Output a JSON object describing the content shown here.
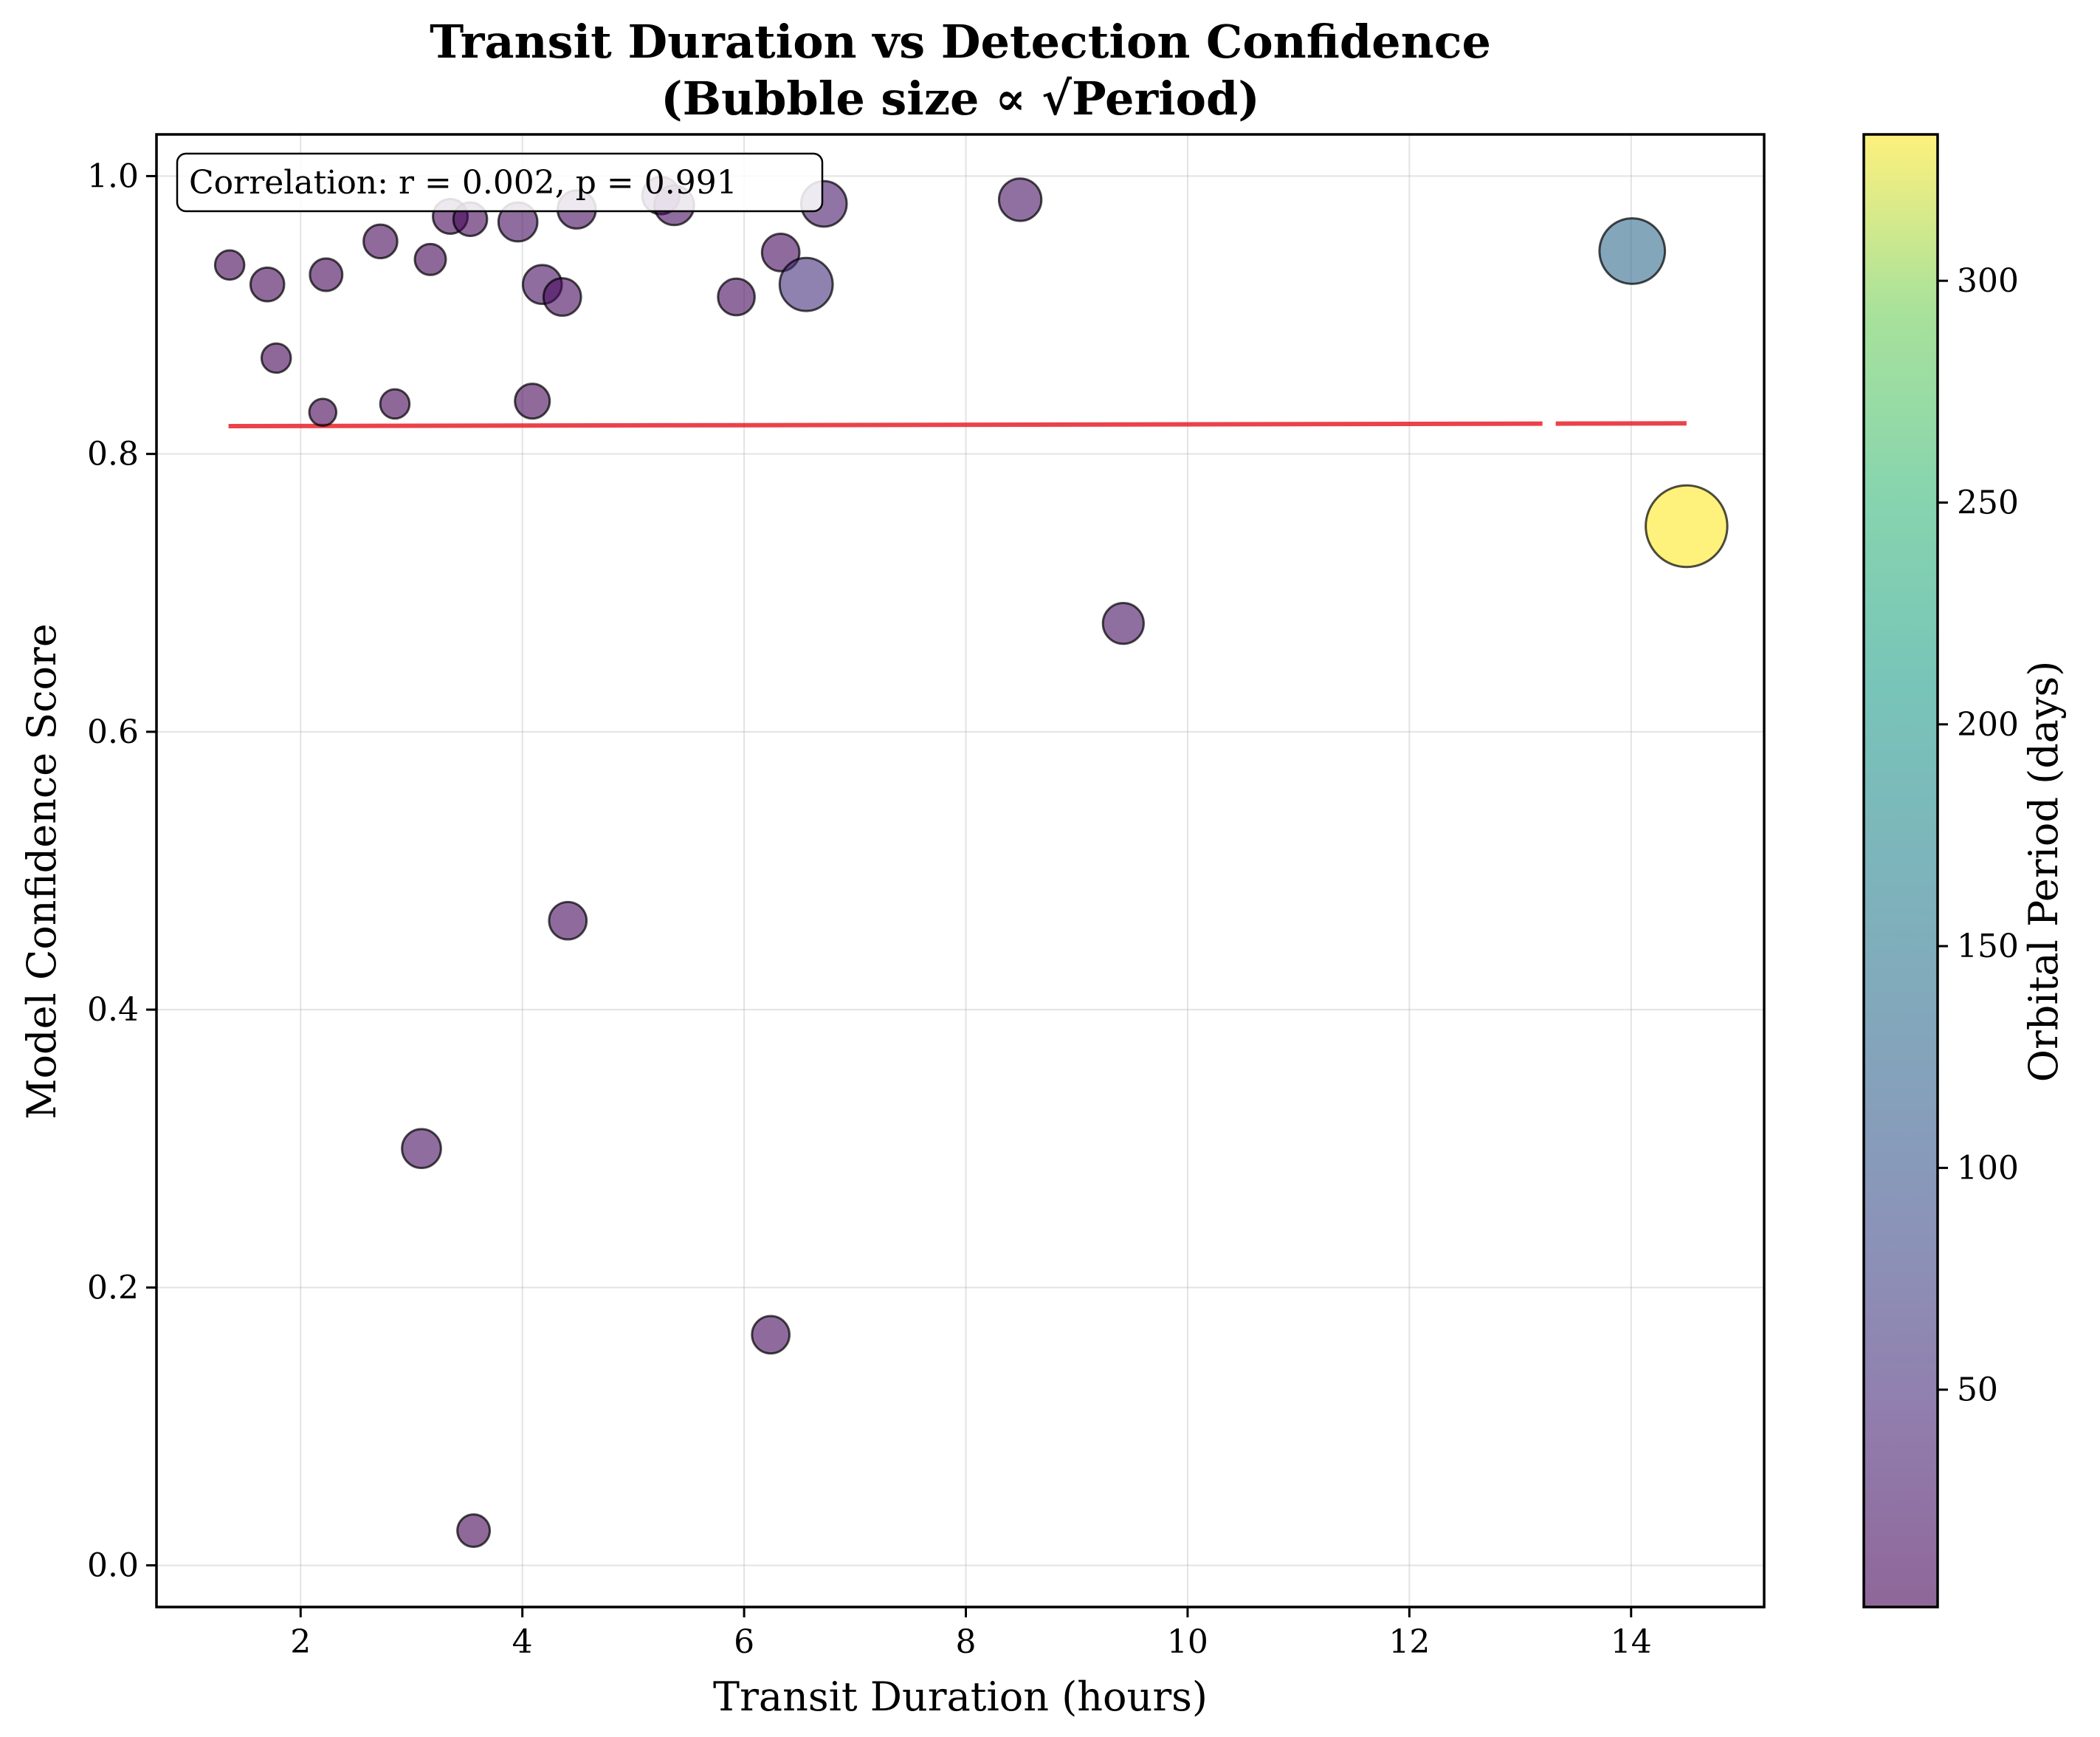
{
  "chart_data": {
    "type": "scatter",
    "title": [
      "Transit Duration vs Detection Confidence",
      "(Bubble size ∝ √Period)"
    ],
    "xlabel": "Transit Duration (hours)",
    "ylabel": "Model Confidence Score",
    "xlim": [
      0.7,
      15.2
    ],
    "ylim": [
      -0.03,
      1.03
    ],
    "xticks": [
      2,
      4,
      6,
      8,
      10,
      12,
      14
    ],
    "yticks": [
      0.0,
      0.2,
      0.4,
      0.6,
      0.8,
      1.0
    ],
    "xtick_labels": [
      "2",
      "4",
      "6",
      "8",
      "10",
      "12",
      "14"
    ],
    "ytick_labels": [
      "0.0",
      "0.2",
      "0.4",
      "0.6",
      "0.8",
      "1.0"
    ],
    "grid": true,
    "annotation": "Correlation: r = 0.002, p = 0.991",
    "trendline": {
      "x": [
        1.35,
        14.5
      ],
      "y": [
        0.82,
        0.822
      ],
      "color": "#e8212a"
    },
    "colorbar": {
      "label": "Orbital Period (days)",
      "colormap": "viridis",
      "range": [
        1,
        333
      ],
      "ticks": [
        50,
        100,
        150,
        200,
        250,
        300
      ],
      "tick_labels": [
        "50",
        "100",
        "150",
        "200",
        "250",
        "300"
      ],
      "alpha": 0.6
    },
    "points": [
      {
        "x": 1.36,
        "y": 0.936,
        "period": 3
      },
      {
        "x": 1.7,
        "y": 0.922,
        "period": 6
      },
      {
        "x": 1.78,
        "y": 0.869,
        "period": 3
      },
      {
        "x": 2.2,
        "y": 0.83,
        "period": 2
      },
      {
        "x": 2.23,
        "y": 0.929,
        "period": 5
      },
      {
        "x": 2.72,
        "y": 0.953,
        "period": 6
      },
      {
        "x": 2.85,
        "y": 0.836,
        "period": 3
      },
      {
        "x": 3.17,
        "y": 0.94,
        "period": 4
      },
      {
        "x": 3.09,
        "y": 0.3,
        "period": 12
      },
      {
        "x": 3.35,
        "y": 0.971,
        "period": 7
      },
      {
        "x": 3.53,
        "y": 0.969,
        "period": 6
      },
      {
        "x": 3.56,
        "y": 0.025,
        "period": 5
      },
      {
        "x": 3.96,
        "y": 0.967,
        "period": 12
      },
      {
        "x": 4.09,
        "y": 0.838,
        "period": 7
      },
      {
        "x": 4.18,
        "y": 0.922,
        "period": 12
      },
      {
        "x": 4.36,
        "y": 0.913,
        "period": 10
      },
      {
        "x": 4.41,
        "y": 0.464,
        "period": 10
      },
      {
        "x": 4.49,
        "y": 0.976,
        "period": 11
      },
      {
        "x": 5.25,
        "y": 0.986,
        "period": 10
      },
      {
        "x": 5.37,
        "y": 0.979,
        "period": 13
      },
      {
        "x": 5.93,
        "y": 0.913,
        "period": 9
      },
      {
        "x": 6.24,
        "y": 0.166,
        "period": 10
      },
      {
        "x": 6.33,
        "y": 0.945,
        "period": 10
      },
      {
        "x": 6.56,
        "y": 0.922,
        "period": 50
      },
      {
        "x": 6.72,
        "y": 0.98,
        "period": 25
      },
      {
        "x": 8.49,
        "y": 0.983,
        "period": 18
      },
      {
        "x": 9.42,
        "y": 0.678,
        "period": 15
      },
      {
        "x": 14.01,
        "y": 0.946,
        "period": 128
      },
      {
        "x": 14.5,
        "y": 0.748,
        "period": 333
      }
    ]
  }
}
